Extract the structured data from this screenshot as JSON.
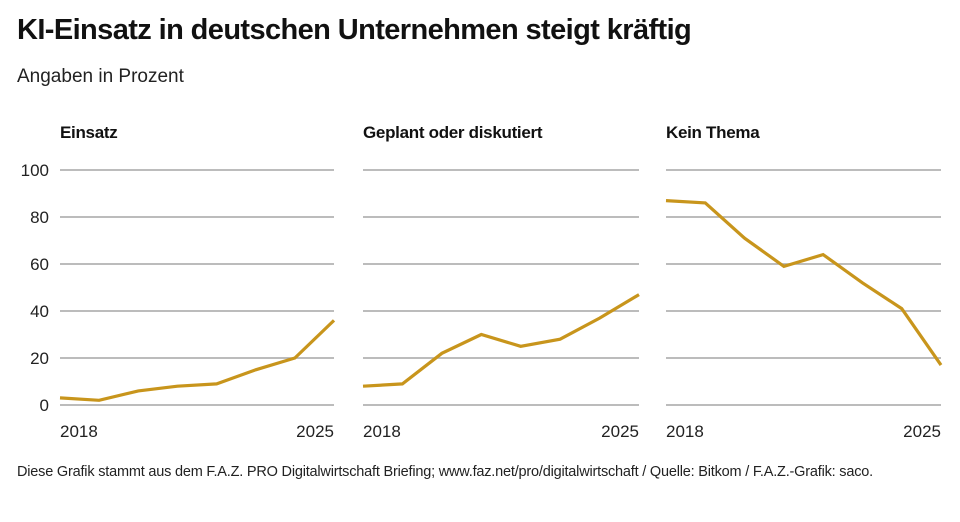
{
  "header": {
    "title": "KI-Einsatz in deutschen Unternehmen steigt kräftig",
    "subtitle": "Angaben in Prozent"
  },
  "footer": {
    "text": "Diese Grafik stammt aus dem F.A.Z. PRO Digitalwirtschaft Briefing; www.faz.net/pro/digitalwirtschaft / Quelle: Bitkom / F.A.Z.-Grafik: saco."
  },
  "colors": {
    "line": "#c8951c",
    "grid": "#a6a6a6"
  },
  "chart_data": {
    "type": "line",
    "title": "KI-Einsatz in deutschen Unternehmen steigt kräftig",
    "subtitle": "Angaben in Prozent",
    "x": [
      2018,
      2019,
      2020,
      2021,
      2022,
      2023,
      2024,
      2025
    ],
    "x_tick_labels": [
      "2018",
      "2025"
    ],
    "y_ticks": [
      0,
      20,
      40,
      60,
      80,
      100
    ],
    "y_tick_labels": [
      "0",
      "20",
      "40",
      "60",
      "80",
      "100"
    ],
    "ylim": [
      0,
      100
    ],
    "grid": true,
    "legend": "none",
    "panels": [
      {
        "name": "Einsatz",
        "values": [
          3,
          2,
          6,
          8,
          9,
          15,
          20,
          36
        ]
      },
      {
        "name": "Geplant oder diskutiert",
        "values": [
          8,
          9,
          22,
          30,
          25,
          28,
          37,
          47
        ]
      },
      {
        "name": "Kein Thema",
        "values": [
          87,
          86,
          71,
          59,
          64,
          52,
          41,
          17
        ]
      }
    ]
  }
}
